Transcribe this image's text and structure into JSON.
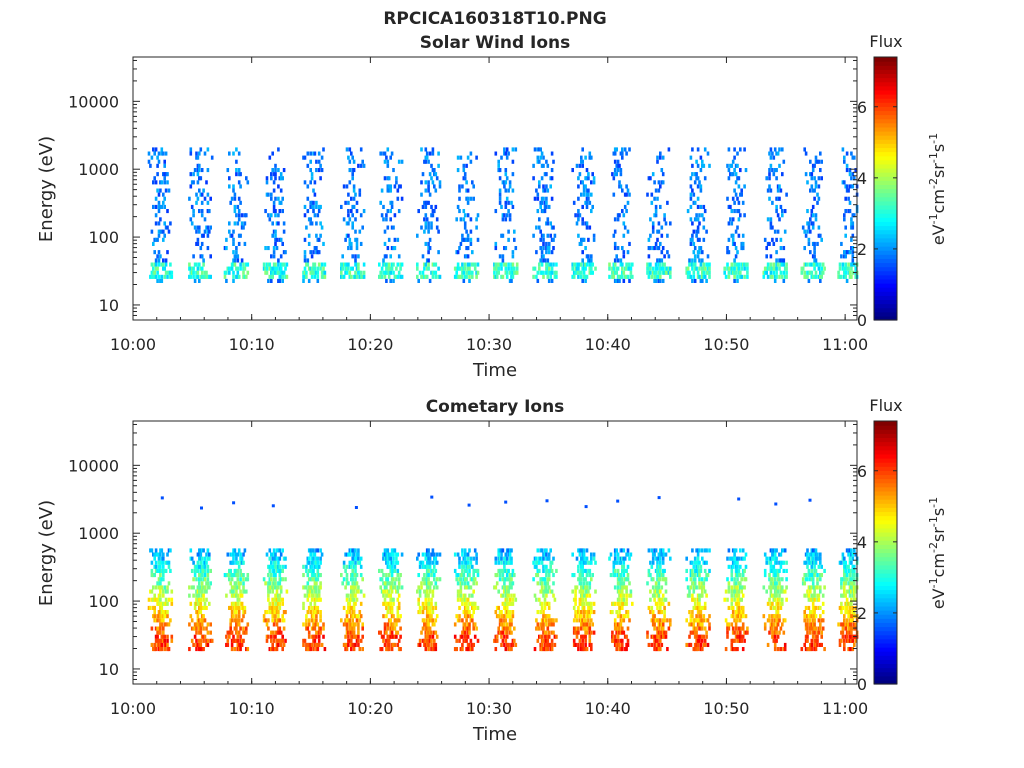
{
  "figure": {
    "title": "RPCICA160318T10.PNG"
  },
  "chart_data": [
    {
      "type": "heatmap",
      "title": "Solar Wind Ions",
      "xlabel": "Time",
      "ylabel": "Energy (eV)",
      "x_ticks": [
        "10:00",
        "10:10",
        "10:20",
        "10:30",
        "10:40",
        "10:50",
        "11:00"
      ],
      "x_range_minutes": [
        0,
        61
      ],
      "y_scale": "log",
      "y_ticks": [
        "10",
        "100",
        "1000",
        "10000"
      ],
      "ylim": [
        6,
        45000
      ],
      "colorbar": {
        "title": "Flux",
        "label_parts": [
          "eV",
          "-1",
          "cm",
          "-2",
          "sr",
          "-1",
          "s",
          "-1"
        ],
        "ticks": [
          "0",
          "2",
          "4",
          "6"
        ],
        "range": [
          0,
          7.4
        ],
        "colormap": "jet"
      },
      "description_values": {
        "sweep_times_min": [
          2.2,
          5.6,
          8.6,
          11.9,
          15.1,
          18.4,
          21.6,
          24.8,
          28.0,
          31.3,
          34.6,
          37.9,
          41.0,
          44.2,
          47.5,
          50.7,
          54.0,
          57.2,
          60.3
        ],
        "band_energy_range_eV": [
          20,
          2000
        ],
        "high_flux_band_eV": [
          25,
          45
        ],
        "high_flux_value": 3.8,
        "typical_flux": 1.8
      }
    },
    {
      "type": "heatmap",
      "title": "Cometary Ions",
      "xlabel": "Time",
      "ylabel": "Energy (eV)",
      "x_ticks": [
        "10:00",
        "10:10",
        "10:20",
        "10:30",
        "10:40",
        "10:50",
        "11:00"
      ],
      "x_range_minutes": [
        0,
        61
      ],
      "y_scale": "log",
      "y_ticks": [
        "10",
        "100",
        "1000",
        "10000"
      ],
      "ylim": [
        6,
        45000
      ],
      "colorbar": {
        "title": "Flux",
        "label_parts": [
          "eV",
          "-1",
          "cm",
          "-2",
          "sr",
          "-1",
          "s",
          "-1"
        ],
        "ticks": [
          "0",
          "2",
          "4",
          "6"
        ],
        "range": [
          0,
          7.4
        ],
        "colormap": "jet"
      },
      "description_values": {
        "sweep_times_min": [
          2.2,
          5.6,
          8.6,
          11.9,
          15.1,
          18.4,
          21.6,
          24.8,
          28.0,
          31.3,
          34.6,
          37.9,
          41.0,
          44.2,
          47.5,
          50.7,
          54.0,
          57.2,
          60.3
        ],
        "band_energy_range_eV": [
          18,
          600
        ],
        "peak_energy_eV": 30,
        "peak_flux": 6.0,
        "upper_flux": 2.0,
        "high_energy_spots_eV": 3000
      }
    }
  ]
}
